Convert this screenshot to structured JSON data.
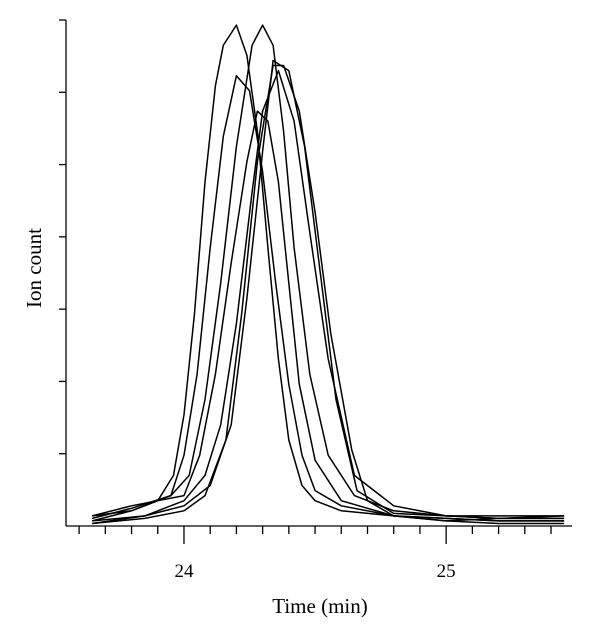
{
  "chart_data": {
    "type": "line",
    "xlabel": "Time (min)",
    "ylabel": "Ion count",
    "xlim": [
      23.55,
      25.48
    ],
    "ylim": [
      0,
      1
    ],
    "x_major_ticks": [
      24,
      25
    ],
    "x_minor_step": 0.1,
    "y_tick_count": 7,
    "grid": false,
    "series": [
      {
        "x": [
          23.65,
          23.8,
          23.9,
          23.96,
          24.0,
          24.04,
          24.08,
          24.12,
          24.15,
          24.2,
          24.24,
          24.28,
          24.32,
          24.36,
          24.4,
          24.45,
          24.5,
          24.6,
          24.8,
          25.0,
          25.2,
          25.45
        ],
        "values": [
          0.02,
          0.03,
          0.05,
          0.1,
          0.22,
          0.42,
          0.68,
          0.87,
          0.95,
          0.99,
          0.93,
          0.78,
          0.55,
          0.33,
          0.17,
          0.08,
          0.05,
          0.03,
          0.02,
          0.01,
          0.015,
          0.02
        ]
      },
      {
        "x": [
          23.65,
          23.8,
          23.95,
          24.0,
          24.05,
          24.1,
          24.15,
          24.2,
          24.25,
          24.3,
          24.35,
          24.4,
          24.45,
          24.5,
          24.6,
          24.8,
          25.0,
          25.2,
          25.45
        ],
        "values": [
          0.01,
          0.03,
          0.06,
          0.14,
          0.3,
          0.55,
          0.77,
          0.89,
          0.86,
          0.7,
          0.48,
          0.28,
          0.14,
          0.07,
          0.04,
          0.02,
          0.015,
          0.01,
          0.01
        ]
      },
      {
        "x": [
          23.65,
          23.8,
          23.95,
          24.02,
          24.08,
          24.14,
          24.2,
          24.26,
          24.3,
          24.34,
          24.38,
          24.42,
          24.48,
          24.55,
          24.65,
          24.8,
          25.0,
          25.2,
          25.45
        ],
        "values": [
          0.015,
          0.035,
          0.06,
          0.1,
          0.25,
          0.48,
          0.75,
          0.95,
          0.99,
          0.95,
          0.78,
          0.55,
          0.3,
          0.14,
          0.06,
          0.03,
          0.02,
          0.015,
          0.015
        ]
      },
      {
        "x": [
          23.65,
          23.8,
          23.9,
          24.0,
          24.06,
          24.12,
          24.18,
          24.24,
          24.28,
          24.32,
          24.36,
          24.4,
          24.44,
          24.5,
          24.6,
          24.8,
          25.0,
          25.2,
          25.45
        ],
        "values": [
          0.02,
          0.04,
          0.05,
          0.06,
          0.14,
          0.3,
          0.52,
          0.72,
          0.82,
          0.8,
          0.68,
          0.48,
          0.28,
          0.13,
          0.05,
          0.02,
          0.01,
          0.005,
          0.005
        ]
      },
      {
        "x": [
          23.65,
          23.85,
          24.0,
          24.08,
          24.14,
          24.2,
          24.26,
          24.3,
          24.36,
          24.42,
          24.48,
          24.55,
          24.65,
          24.8,
          25.0,
          25.2,
          25.45
        ],
        "values": [
          0.005,
          0.02,
          0.05,
          0.1,
          0.2,
          0.4,
          0.66,
          0.82,
          0.9,
          0.8,
          0.58,
          0.33,
          0.1,
          0.04,
          0.02,
          0.015,
          0.015
        ]
      },
      {
        "x": [
          23.65,
          23.85,
          24.0,
          24.08,
          24.16,
          24.22,
          24.28,
          24.34,
          24.38,
          24.44,
          24.5,
          24.56,
          24.64,
          24.7,
          24.8,
          25.0,
          25.2,
          25.45
        ],
        "values": [
          0.005,
          0.015,
          0.03,
          0.06,
          0.17,
          0.42,
          0.72,
          0.91,
          0.91,
          0.82,
          0.62,
          0.38,
          0.15,
          0.05,
          0.02,
          0.015,
          0.01,
          0.01
        ]
      },
      {
        "x": [
          23.65,
          23.85,
          24.0,
          24.1,
          24.18,
          24.24,
          24.3,
          24.34,
          24.4,
          24.46,
          24.52,
          24.58,
          24.66,
          24.8,
          25.0,
          25.2,
          25.45
        ],
        "values": [
          0.01,
          0.02,
          0.04,
          0.08,
          0.2,
          0.45,
          0.74,
          0.92,
          0.9,
          0.75,
          0.5,
          0.25,
          0.07,
          0.025,
          0.02,
          0.02,
          0.02
        ]
      }
    ]
  }
}
